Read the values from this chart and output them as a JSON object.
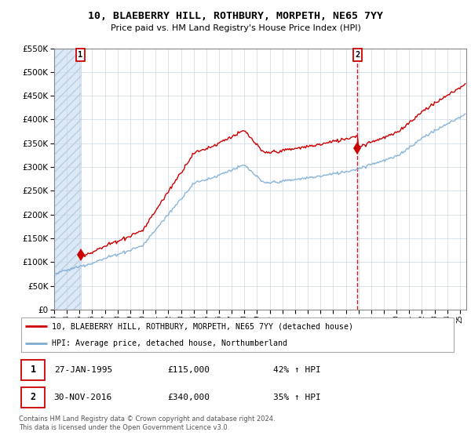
{
  "title": "10, BLAEBERRY HILL, ROTHBURY, MORPETH, NE65 7YY",
  "subtitle": "Price paid vs. HM Land Registry's House Price Index (HPI)",
  "property_label": "10, BLAEBERRY HILL, ROTHBURY, MORPETH, NE65 7YY (detached house)",
  "hpi_label": "HPI: Average price, detached house, Northumberland",
  "sale1_date": "27-JAN-1995",
  "sale1_price": 115000,
  "sale1_hpi": "42% ↑ HPI",
  "sale2_date": "30-NOV-2016",
  "sale2_price": 340000,
  "sale2_hpi": "35% ↑ HPI",
  "footer": "Contains HM Land Registry data © Crown copyright and database right 2024.\nThis data is licensed under the Open Government Licence v3.0.",
  "property_color": "#cc0000",
  "hpi_color": "#7dadd4",
  "sale1_x": 1995.08,
  "sale2_x": 2016.92,
  "ylim_min": 0,
  "ylim_max": 550000,
  "xlim_min": 1993.0,
  "xlim_max": 2025.5
}
